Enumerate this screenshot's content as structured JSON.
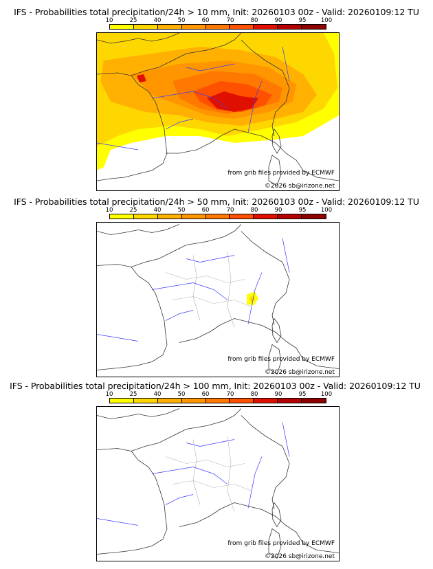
{
  "panels": [
    {
      "title": "IFS - Probabilities total precipitation/24h > 10 mm, Init: 20260103 00z - Valid: 20260109:12 TU",
      "source_label": "from grib files provided by ECMWF",
      "copyright_label": "©2026 sb@irizone.net"
    },
    {
      "title": "IFS - Probabilities total precipitation/24h > 50 mm, Init: 20260103 00z - Valid: 20260109:12 TU",
      "source_label": "from grib files provided by ECMWF",
      "copyright_label": "©2026 sb@irizone.net"
    },
    {
      "title": "IFS - Probabilities total precipitation/24h > 100 mm, Init: 20260103 00z - Valid: 20260109:12 TU",
      "source_label": "from grib files provided by ECMWF",
      "copyright_label": "©2026 sb@irizone.net"
    }
  ],
  "colorbar": {
    "ticks": [
      "10",
      "25",
      "40",
      "50",
      "60",
      "70",
      "80",
      "90",
      "95",
      "100"
    ],
    "colors": [
      "#ffff00",
      "#ffd700",
      "#ffb000",
      "#ff9600",
      "#ff7800",
      "#ff5000",
      "#e01000",
      "#b40000",
      "#8c0000"
    ]
  },
  "map_colors": {
    "border": "#333333",
    "river": "#3a3aff",
    "region": "#b0b0b0"
  }
}
